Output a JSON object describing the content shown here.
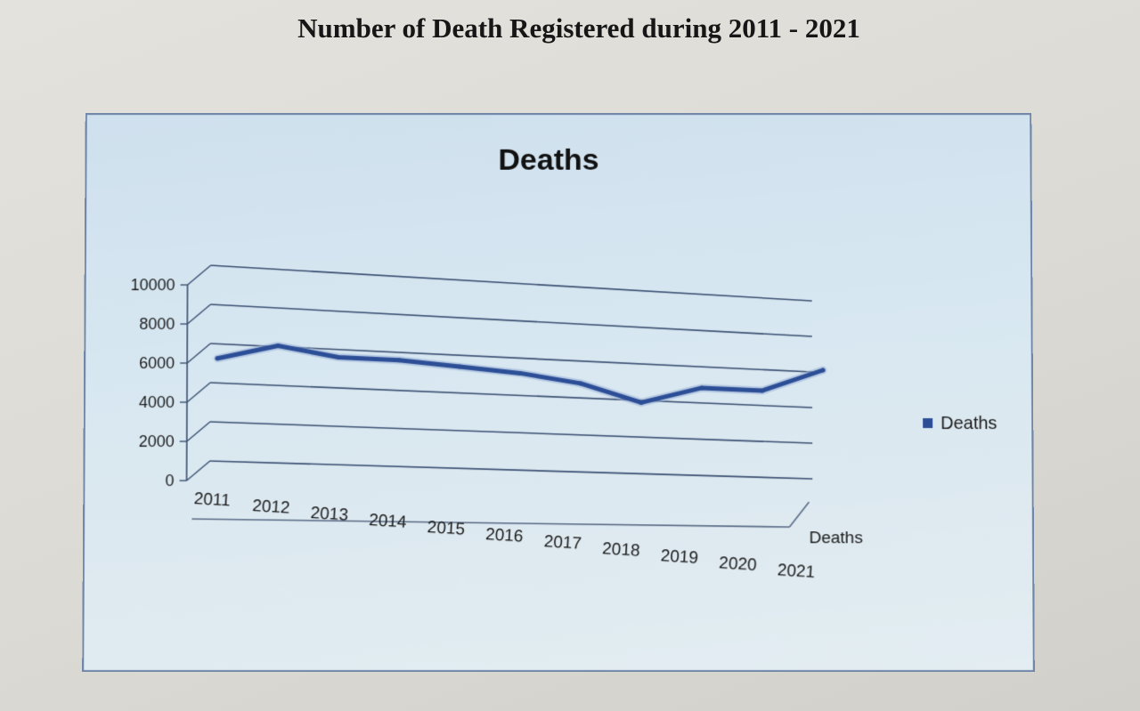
{
  "page": {
    "heading": "Number of Death Registered during 2011 - 2021"
  },
  "chart_data": {
    "type": "line",
    "title": "Deaths",
    "categories": [
      "2011",
      "2012",
      "2013",
      "2014",
      "2015",
      "2016",
      "2017",
      "2018",
      "2019",
      "2020",
      "2021"
    ],
    "series": [
      {
        "name": "Deaths",
        "values": [
          5600,
          6400,
          5950,
          5950,
          5750,
          5550,
          5150,
          4250,
          5200,
          5200,
          6500
        ]
      }
    ],
    "ylim": [
      0,
      10000
    ],
    "yticks": [
      "0",
      "2000",
      "4000",
      "6000",
      "8000",
      "10000"
    ],
    "depth_axis_label": "Deaths",
    "legend": {
      "position": "right",
      "label": "Deaths"
    },
    "grid": true,
    "style": "3d-line",
    "colors": {
      "series": "#2c4e96",
      "grid": "#3a4f72"
    }
  }
}
